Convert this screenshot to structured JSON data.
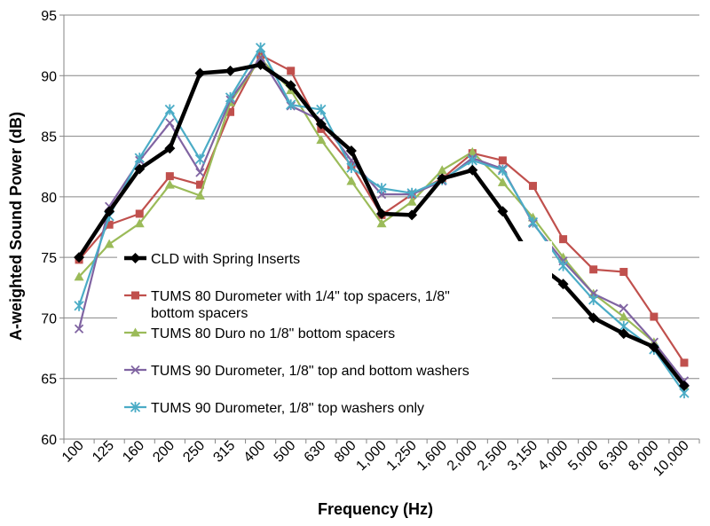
{
  "chart_data": {
    "type": "line",
    "title": "",
    "xlabel": "Frequency (Hz)",
    "ylabel": "A-weighted Sound Power (dB)",
    "ylim": [
      60,
      95
    ],
    "yticks": [
      60,
      65,
      70,
      75,
      80,
      85,
      90,
      95
    ],
    "grid": "horizontal",
    "legend_position": "inside-bottom-left",
    "categories": [
      "100",
      "125",
      "160",
      "200",
      "250",
      "315",
      "400",
      "500",
      "630",
      "800",
      "1,000",
      "1,250",
      "1,600",
      "2,000",
      "2,500",
      "3,150",
      "4,000",
      "5,000",
      "6,300",
      "8,000",
      "10,000"
    ],
    "series": [
      {
        "name": "CLD with Spring Inserts",
        "color": "#000000",
        "marker": "diamond",
        "values": [
          75.0,
          78.8,
          82.3,
          84.0,
          90.2,
          90.4,
          90.9,
          89.2,
          86.0,
          83.8,
          78.6,
          78.5,
          81.5,
          82.2,
          78.8,
          74.7,
          72.8,
          70.0,
          68.7,
          67.6,
          64.4
        ]
      },
      {
        "name": "TUMS 80 Durometer with 1/4\" top spacers, 1/8\" bottom spacers",
        "color": "#c0504d",
        "marker": "square",
        "values": [
          74.8,
          77.7,
          78.6,
          81.7,
          81.0,
          87.0,
          91.7,
          90.4,
          85.6,
          82.6,
          78.5,
          80.2,
          81.5,
          83.6,
          83.0,
          80.9,
          76.5,
          74.0,
          73.8,
          70.1,
          66.3
        ]
      },
      {
        "name": "TUMS 80 Duro no 1/8\" bottom spacers",
        "color": "#9bbb59",
        "marker": "triangle",
        "values": [
          73.4,
          76.1,
          77.8,
          81.0,
          80.1,
          87.8,
          91.4,
          88.8,
          84.7,
          81.3,
          77.8,
          79.6,
          82.2,
          83.7,
          81.2,
          78.3,
          75.0,
          72.0,
          70.1,
          68.0,
          64.4
        ]
      },
      {
        "name": "TUMS 90 Durometer, 1/8\" top and bottom washers",
        "color": "#8064a2",
        "marker": "x",
        "values": [
          69.1,
          79.2,
          83.0,
          86.1,
          82.0,
          88.0,
          91.5,
          87.5,
          86.3,
          83.0,
          80.2,
          80.2,
          81.3,
          83.2,
          82.3,
          77.8,
          74.7,
          72.0,
          70.8,
          68.0,
          64.8
        ]
      },
      {
        "name": "TUMS 90 Durometer, 1/8\" top washers only",
        "color": "#4bacc6",
        "marker": "star",
        "values": [
          71.0,
          78.4,
          83.2,
          87.2,
          83.1,
          88.2,
          92.3,
          87.6,
          87.2,
          82.4,
          80.7,
          80.3,
          81.4,
          83.0,
          82.2,
          77.9,
          74.3,
          71.5,
          69.3,
          67.4,
          63.8
        ]
      }
    ]
  }
}
